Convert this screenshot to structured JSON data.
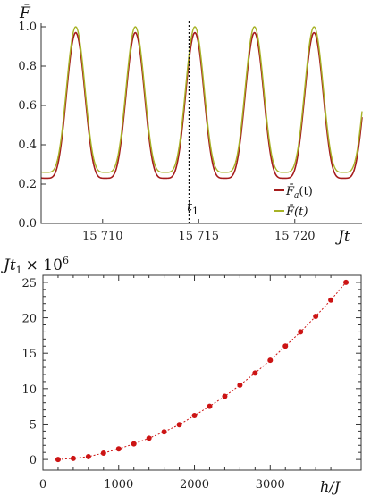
{
  "chart_data": [
    {
      "type": "line",
      "title": "",
      "xlabel": "Jt",
      "ylabel": "F̄",
      "xlim": [
        15706.8,
        15723.5
      ],
      "ylim": [
        0,
        1.0
      ],
      "x_ticks": [
        15710,
        15715,
        15720
      ],
      "x_tick_labels": [
        "15 710",
        "15 715",
        "15 720"
      ],
      "y_ticks": [
        0.0,
        0.2,
        0.4,
        0.6,
        0.8,
        1.0
      ],
      "y_tick_labels": [
        "0.0",
        "0.2",
        "0.4",
        "0.6",
        "0.8",
        "1.0"
      ],
      "grid": false,
      "legend": "bottom-right",
      "period": 3.1,
      "peak_positions": [
        15708.6,
        15711.7,
        15714.8,
        15717.9,
        15721.0
      ],
      "series": [
        {
          "name": "F̄a(t)",
          "color": "#a51c1c",
          "min": 0.23,
          "max": 0.97
        },
        {
          "name": "F̄(t)",
          "color": "#a7b226",
          "min": 0.26,
          "max": 1.0
        }
      ],
      "marker_line": {
        "x": 15714.5,
        "label": "t1",
        "style": "dotted"
      }
    },
    {
      "type": "scatter",
      "title": "",
      "xlabel": "h/J",
      "ylabel": "Jt1 × 10^6",
      "xlim": [
        0,
        4200
      ],
      "ylim": [
        -1.5,
        26
      ],
      "x_ticks": [
        0,
        1000,
        2000,
        3000
      ],
      "y_ticks": [
        0,
        5,
        10,
        15,
        20,
        25
      ],
      "grid": false,
      "series": [
        {
          "name": "",
          "color": "#cc1414",
          "connected": "dotted",
          "x": [
            200,
            400,
            600,
            800,
            1000,
            1200,
            1400,
            1600,
            1800,
            2000,
            2200,
            2400,
            2600,
            2800,
            3000,
            3200,
            3400,
            3600,
            3800,
            4000
          ],
          "y": [
            0.0,
            0.15,
            0.4,
            0.9,
            1.5,
            2.2,
            3.0,
            3.9,
            4.9,
            6.2,
            7.5,
            8.9,
            10.5,
            12.2,
            14.0,
            16.0,
            18.0,
            20.2,
            22.5,
            25.0
          ]
        }
      ]
    }
  ],
  "labels": {
    "top_ylabel": "F̄",
    "top_xlabel": "Jt",
    "marker_label_main": "t",
    "marker_label_sub": "1",
    "legend_a_main": "F̄",
    "legend_a_sub": "a",
    "legend_a_tail": "(t)",
    "legend_b_main": "F̄(t)",
    "bottom_ylabel_main": "Jt",
    "bottom_ylabel_sub": "1",
    "bottom_ylabel_tail": "× 10",
    "bottom_ylabel_sup": "6",
    "bottom_xlabel": "h/J"
  }
}
